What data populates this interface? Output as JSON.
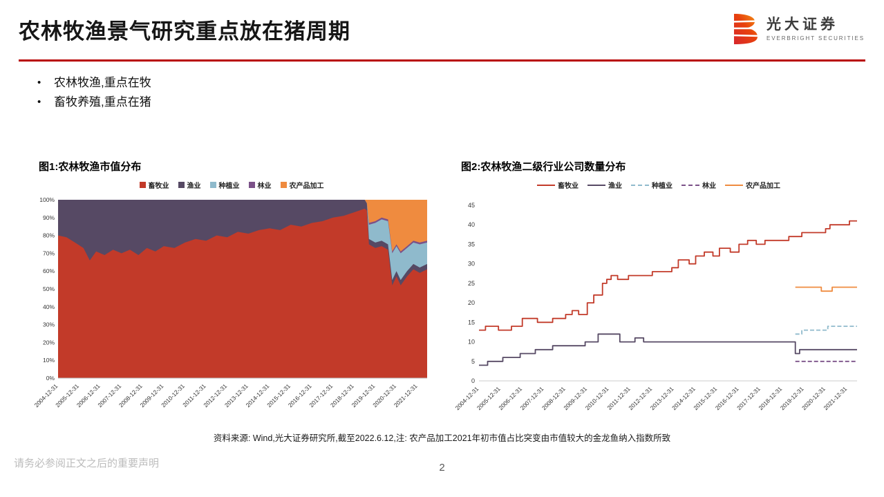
{
  "header": {
    "title": "农林牧渔景气研究重点放在猪周期",
    "brand_cn": "光大证券",
    "brand_en": "EVERBRIGHT SECURITIES",
    "accent_color": "#B80000"
  },
  "bullets": [
    "农林牧渔,重点在牧",
    "畜牧养殖,重点在猪"
  ],
  "source_note": "资料来源: Wind,光大证券研究所,截至2022.6.12,注: 农产品加工2021年初市值占比突变由市值较大的金龙鱼纳入指数所致",
  "footer": {
    "disclaimer": "请务必参阅正文之后的重要声明",
    "page": "2"
  },
  "chart_data": [
    {
      "type": "area",
      "stacked": true,
      "percent": true,
      "title": "图1:农林牧渔市值分布",
      "legend_position": "top",
      "grid": false,
      "x_domain": [
        2005.0,
        2022.45
      ],
      "x_tick_labels": [
        "2004-12-31",
        "2005-12-31",
        "2006-12-31",
        "2007-12-31",
        "2008-12-31",
        "2009-12-31",
        "2010-12-31",
        "2011-12-31",
        "2012-12-31",
        "2013-12-31",
        "2014-12-31",
        "2015-12-31",
        "2016-12-31",
        "2017-12-31",
        "2018-12-31",
        "2019-12-31",
        "2020-12-31",
        "2021-12-31"
      ],
      "y_tick_labels": [
        "0%",
        "10%",
        "20%",
        "30%",
        "40%",
        "50%",
        "60%",
        "70%",
        "80%",
        "90%",
        "100%"
      ],
      "ylim": [
        0,
        100
      ],
      "series_names": [
        "畜牧业",
        "渔业",
        "种植业",
        "林业",
        "农产品加工"
      ],
      "colors": [
        "#C23A29",
        "#564964",
        "#8FBACC",
        "#7B5188",
        "#EF8B3F"
      ],
      "points": [
        [
          2005.0,
          80,
          20,
          0,
          0,
          0
        ],
        [
          2005.4,
          79,
          21,
          0,
          0,
          0
        ],
        [
          2005.8,
          76,
          24,
          0,
          0,
          0
        ],
        [
          2006.2,
          73,
          27,
          0,
          0,
          0
        ],
        [
          2006.5,
          66,
          34,
          0,
          0,
          0
        ],
        [
          2006.8,
          71,
          29,
          0,
          0,
          0
        ],
        [
          2007.2,
          69,
          31,
          0,
          0,
          0
        ],
        [
          2007.6,
          72,
          28,
          0,
          0,
          0
        ],
        [
          2008.0,
          70,
          30,
          0,
          0,
          0
        ],
        [
          2008.4,
          72,
          28,
          0,
          0,
          0
        ],
        [
          2008.8,
          69,
          31,
          0,
          0,
          0
        ],
        [
          2009.2,
          73,
          27,
          0,
          0,
          0
        ],
        [
          2009.6,
          71,
          29,
          0,
          0,
          0
        ],
        [
          2010.0,
          74,
          26,
          0,
          0,
          0
        ],
        [
          2010.5,
          73,
          27,
          0,
          0,
          0
        ],
        [
          2011.0,
          76,
          24,
          0,
          0,
          0
        ],
        [
          2011.5,
          78,
          22,
          0,
          0,
          0
        ],
        [
          2012.0,
          77,
          23,
          0,
          0,
          0
        ],
        [
          2012.5,
          80,
          20,
          0,
          0,
          0
        ],
        [
          2013.0,
          79,
          21,
          0,
          0,
          0
        ],
        [
          2013.5,
          82,
          18,
          0,
          0,
          0
        ],
        [
          2014.0,
          81,
          19,
          0,
          0,
          0
        ],
        [
          2014.5,
          83,
          17,
          0,
          0,
          0
        ],
        [
          2015.0,
          84,
          16,
          0,
          0,
          0
        ],
        [
          2015.5,
          83,
          17,
          0,
          0,
          0
        ],
        [
          2016.0,
          86,
          14,
          0,
          0,
          0
        ],
        [
          2016.5,
          85,
          15,
          0,
          0,
          0
        ],
        [
          2017.0,
          87,
          13,
          0,
          0,
          0
        ],
        [
          2017.5,
          88,
          12,
          0,
          0,
          0
        ],
        [
          2018.0,
          90,
          10,
          0,
          0,
          0
        ],
        [
          2018.5,
          91,
          9,
          0,
          0,
          0
        ],
        [
          2019.0,
          93,
          7,
          0,
          0,
          0
        ],
        [
          2019.5,
          95,
          5,
          0,
          0,
          0
        ],
        [
          2019.6,
          94,
          4,
          0,
          0,
          2
        ],
        [
          2019.7,
          75,
          3,
          8,
          1,
          13
        ],
        [
          2020.0,
          73,
          3,
          11,
          1,
          12
        ],
        [
          2020.3,
          74,
          3,
          12,
          1,
          10
        ],
        [
          2020.6,
          72,
          3,
          13,
          1,
          11
        ],
        [
          2020.8,
          52,
          3,
          15,
          1,
          29
        ],
        [
          2021.0,
          57,
          3,
          14,
          1,
          25
        ],
        [
          2021.2,
          52,
          3,
          15,
          1,
          29
        ],
        [
          2021.5,
          57,
          3,
          13,
          1,
          26
        ],
        [
          2021.8,
          61,
          3,
          12,
          1,
          23
        ],
        [
          2022.1,
          59,
          3,
          13,
          1,
          24
        ],
        [
          2022.45,
          61,
          3,
          12,
          1,
          23
        ]
      ]
    },
    {
      "type": "line",
      "step": true,
      "title": "图2:农林牧渔二级行业公司数量分布",
      "legend_position": "top",
      "grid": false,
      "x_domain": [
        2005.0,
        2022.45
      ],
      "x_tick_labels": [
        "2004-12-31",
        "2005-12-31",
        "2006-12-31",
        "2007-12-31",
        "2008-12-31",
        "2009-12-31",
        "2010-12-31",
        "2011-12-31",
        "2012-12-31",
        "2013-12-31",
        "2014-12-31",
        "2015-12-31",
        "2016-12-31",
        "2017-12-31",
        "2018-12-31",
        "2019-12-31",
        "2020-12-31",
        "2021-12-31"
      ],
      "y_tick_labels": [
        "0",
        "5",
        "10",
        "15",
        "20",
        "25",
        "30",
        "35",
        "40",
        "45"
      ],
      "ylim": [
        0,
        45
      ],
      "series": [
        {
          "name": "畜牧业",
          "color": "#C23A29",
          "dash": false,
          "points": [
            [
              2005,
              13
            ],
            [
              2005.3,
              14
            ],
            [
              2005.9,
              13
            ],
            [
              2006.5,
              14
            ],
            [
              2007.0,
              16
            ],
            [
              2007.7,
              15
            ],
            [
              2008.4,
              16
            ],
            [
              2009.0,
              17
            ],
            [
              2009.3,
              18
            ],
            [
              2009.6,
              17
            ],
            [
              2010.0,
              20
            ],
            [
              2010.3,
              22
            ],
            [
              2010.7,
              25
            ],
            [
              2010.9,
              26
            ],
            [
              2011.1,
              27
            ],
            [
              2011.4,
              26
            ],
            [
              2011.9,
              27
            ],
            [
              2013.0,
              28
            ],
            [
              2013.9,
              29
            ],
            [
              2014.2,
              31
            ],
            [
              2014.7,
              30
            ],
            [
              2015.0,
              32
            ],
            [
              2015.4,
              33
            ],
            [
              2015.8,
              32
            ],
            [
              2016.1,
              34
            ],
            [
              2016.6,
              33
            ],
            [
              2017.0,
              35
            ],
            [
              2017.4,
              36
            ],
            [
              2017.8,
              35
            ],
            [
              2018.2,
              36
            ],
            [
              2019.3,
              37
            ],
            [
              2019.9,
              38
            ],
            [
              2021.0,
              39
            ],
            [
              2021.2,
              40
            ],
            [
              2022.1,
              41
            ],
            [
              2022.45,
              41
            ]
          ]
        },
        {
          "name": "渔业",
          "color": "#564964",
          "dash": false,
          "points": [
            [
              2005,
              4
            ],
            [
              2005.4,
              5
            ],
            [
              2006.1,
              6
            ],
            [
              2006.9,
              7
            ],
            [
              2007.6,
              8
            ],
            [
              2008.4,
              9
            ],
            [
              2009.9,
              10
            ],
            [
              2010.5,
              12
            ],
            [
              2011.5,
              10
            ],
            [
              2012.2,
              11
            ],
            [
              2012.6,
              10
            ],
            [
              2019.5,
              10
            ],
            [
              2019.6,
              7
            ],
            [
              2019.8,
              8
            ],
            [
              2022.45,
              8
            ]
          ]
        },
        {
          "name": "种植业",
          "color": "#8FBACC",
          "dash": true,
          "points": [
            [
              2019.6,
              12
            ],
            [
              2019.9,
              13
            ],
            [
              2021.0,
              13
            ],
            [
              2021.1,
              14
            ],
            [
              2022.45,
              14
            ]
          ]
        },
        {
          "name": "林业",
          "color": "#7B5188",
          "dash": true,
          "points": [
            [
              2019.6,
              5
            ],
            [
              2022.45,
              5
            ]
          ]
        },
        {
          "name": "农产品加工",
          "color": "#EF8B3F",
          "dash": false,
          "points": [
            [
              2019.6,
              24
            ],
            [
              2020.8,
              23
            ],
            [
              2021.3,
              24
            ],
            [
              2022.45,
              24
            ]
          ]
        }
      ]
    }
  ]
}
